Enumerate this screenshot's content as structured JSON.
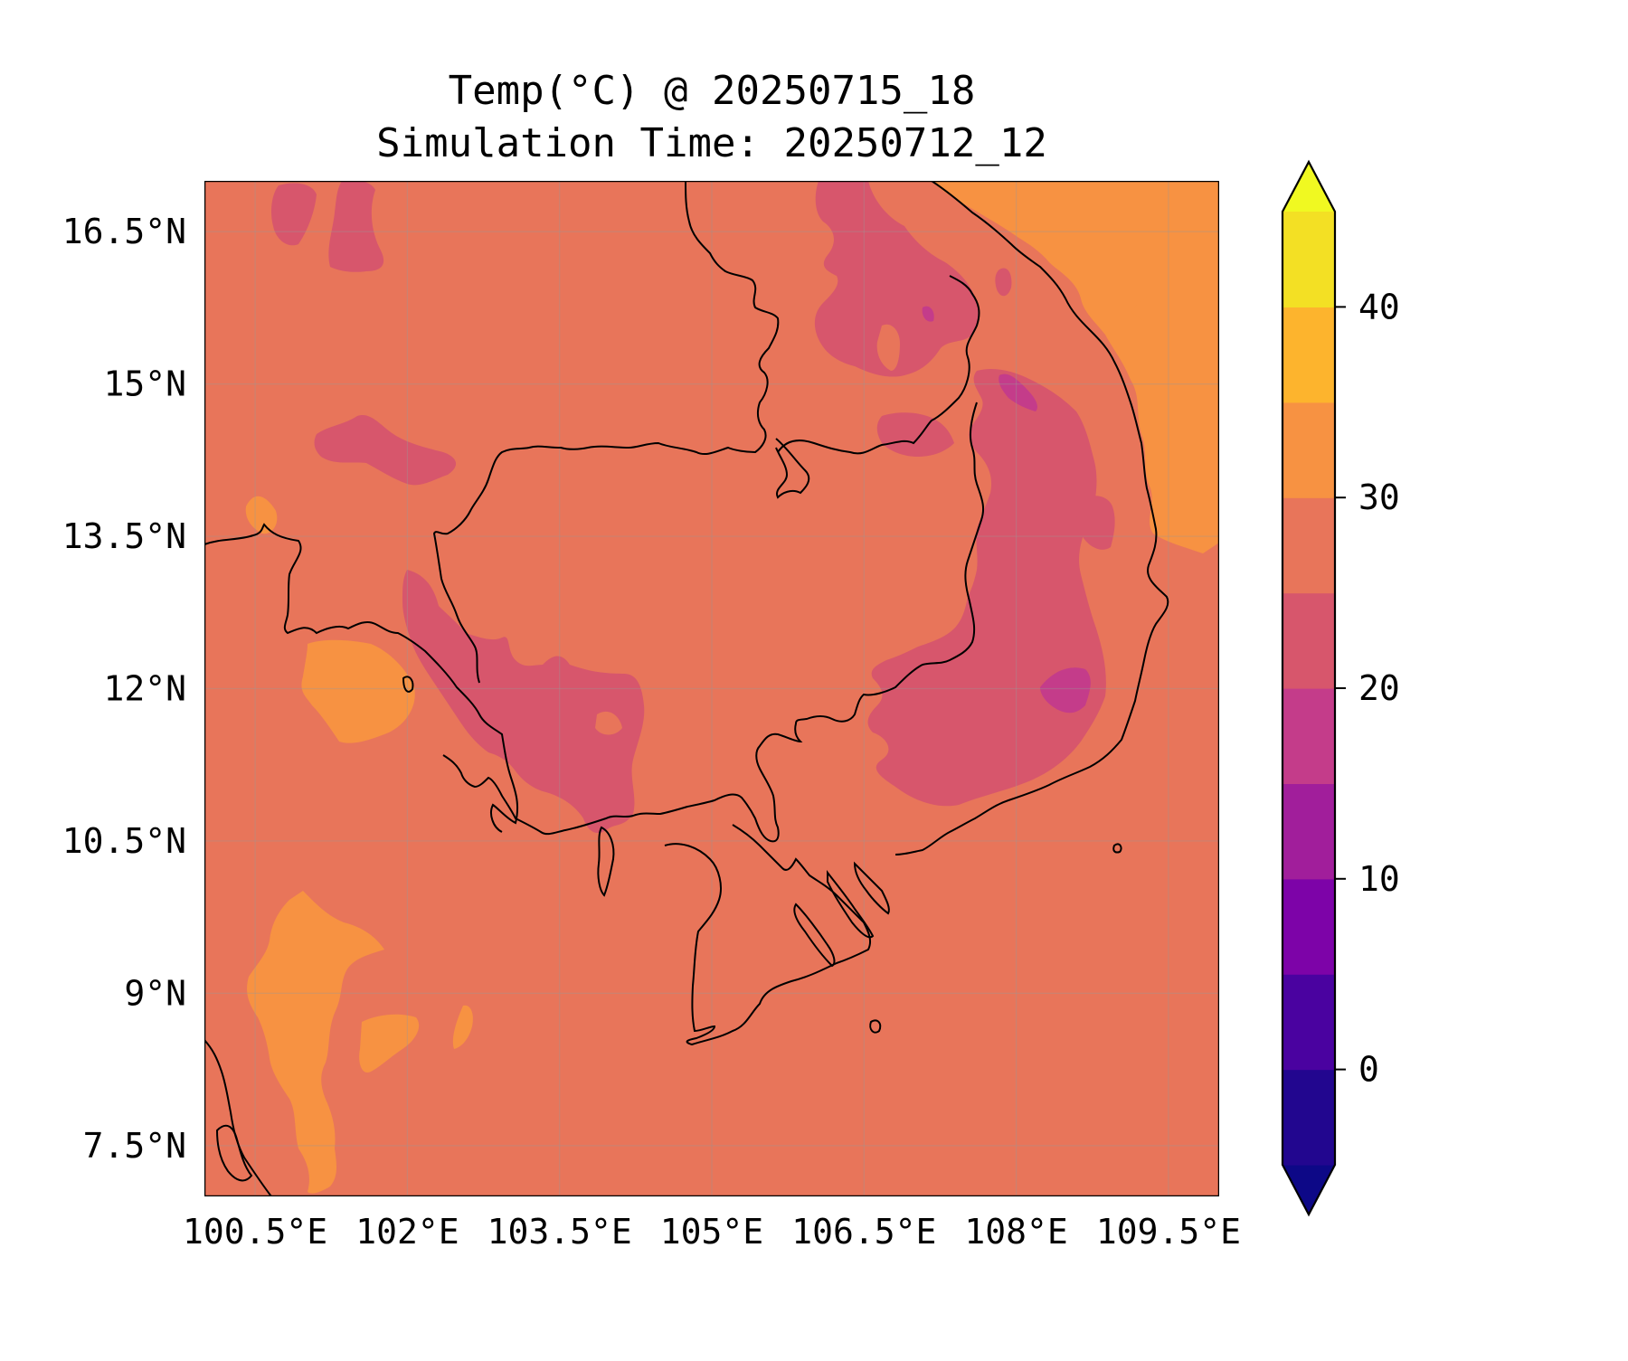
{
  "title_line1": "Temp(°C) @ 20250715_18",
  "title_line2": "Simulation Time: 20250712_12",
  "map": {
    "lon_range": [
      100.0,
      110.0
    ],
    "lat_range": [
      7.0,
      17.0
    ],
    "x_ticks": [
      {
        "value": 100.5,
        "label": "100.5°E"
      },
      {
        "value": 102.0,
        "label": "102°E"
      },
      {
        "value": 103.5,
        "label": "103.5°E"
      },
      {
        "value": 105.0,
        "label": "105°E"
      },
      {
        "value": 106.5,
        "label": "106.5°E"
      },
      {
        "value": 108.0,
        "label": "108°E"
      },
      {
        "value": 109.5,
        "label": "109.5°E"
      }
    ],
    "y_ticks": [
      {
        "value": 16.5,
        "label": "16.5°N"
      },
      {
        "value": 15.0,
        "label": "15°N"
      },
      {
        "value": 13.5,
        "label": "13.5°N"
      },
      {
        "value": 12.0,
        "label": "12°N"
      },
      {
        "value": 10.5,
        "label": "10.5°N"
      },
      {
        "value": 9.0,
        "label": "9°N"
      },
      {
        "value": 7.5,
        "label": "7.5°N"
      }
    ],
    "background_level_color": "#e8755a",
    "gridlines": true
  },
  "colorbar": {
    "levels": [
      -5,
      0,
      5,
      10,
      15,
      20,
      25,
      30,
      35,
      40,
      45
    ],
    "colors": [
      "#22068f",
      "#4a02a0",
      "#7d03a8",
      "#a11e9b",
      "#c43c8a",
      "#d7566c",
      "#e8755a",
      "#f79242",
      "#fdb42d",
      "#f3e024"
    ],
    "under_color": "#0d0887",
    "over_color": "#f0f921",
    "extend": "both",
    "ticks": [
      {
        "value": 0,
        "label": "0"
      },
      {
        "value": 10,
        "label": "10"
      },
      {
        "value": 20,
        "label": "20"
      },
      {
        "value": 30,
        "label": "30"
      },
      {
        "value": 40,
        "label": "40"
      }
    ]
  }
}
